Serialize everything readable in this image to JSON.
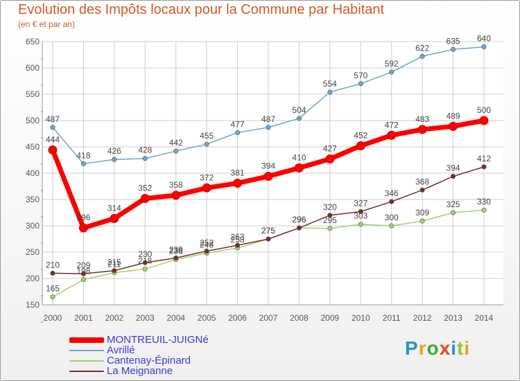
{
  "title": "Evolution des Impôts locaux pour la Commune par Habitant",
  "subtitle": "(en € et par an)",
  "brand": {
    "text": "Proxiti",
    "letter_colors": [
      "#2a8fd6",
      "#e8a11c",
      "#3cab3c",
      "#e3462c",
      "#2a8fd6",
      "#9ac132",
      "#e8a11c"
    ]
  },
  "colors": {
    "grid": "#cccccc",
    "axis_text": "#555555",
    "title": "#d05a2a",
    "legend_text": "#3a3acc"
  },
  "chart_data": {
    "type": "line",
    "x": [
      2000,
      2001,
      2002,
      2003,
      2004,
      2005,
      2006,
      2007,
      2008,
      2009,
      2010,
      2011,
      2012,
      2013,
      2014
    ],
    "ylim": [
      150,
      650
    ],
    "yticks": [
      150,
      200,
      250,
      300,
      350,
      400,
      450,
      500,
      550,
      600,
      650
    ],
    "grid": true,
    "legend_position": "bottom-left",
    "series": [
      {
        "name": "Avrillé",
        "color": "#6aa6d6",
        "values": [
          487,
          418,
          426,
          428,
          442,
          455,
          477,
          487,
          504,
          554,
          570,
          592,
          622,
          635,
          640
        ],
        "labels": [
          "487",
          "418",
          "426",
          "428",
          "442",
          "455",
          "477",
          "487",
          "504",
          "554",
          "570",
          "592",
          "622",
          "635",
          "640"
        ]
      },
      {
        "name": "Cantenay-Épinard",
        "color": "#9ed46a",
        "values": [
          165,
          198,
          211,
          218,
          236,
          248,
          258,
          275,
          296,
          295,
          303,
          300,
          309,
          325,
          330
        ],
        "labels": [
          "165",
          "198",
          "211",
          "218",
          "236",
          "248",
          "258",
          "275",
          "296",
          "295",
          "303",
          "300",
          "309",
          "325",
          "330"
        ]
      },
      {
        "name": "La Meignanne",
        "color": "#7a2a2a",
        "values": [
          210,
          209,
          215,
          230,
          239,
          252,
          263,
          275,
          296,
          320,
          327,
          346,
          368,
          394,
          412
        ],
        "labels": [
          "210",
          "209",
          "215",
          "230",
          "239",
          "252",
          "263",
          "275",
          "296",
          "320",
          "327",
          "346",
          "368",
          "394",
          "412"
        ]
      },
      {
        "name": "MONTREUIL-JUIGNé",
        "color": "#ff0000",
        "values": [
          444,
          296,
          314,
          352,
          358,
          372,
          381,
          394,
          410,
          427,
          452,
          472,
          483,
          489,
          500
        ],
        "labels": [
          "444",
          "296",
          "314",
          "352",
          "358",
          "372",
          "381",
          "394",
          "410",
          "427",
          "452",
          "472",
          "483",
          "489",
          "500"
        ]
      }
    ],
    "legend": [
      {
        "name": "MONTREUIL-JUIGNé",
        "color": "#ff0000",
        "thickness": 8
      },
      {
        "name": "Avrillé",
        "color": "#6aa6d6",
        "thickness": 2
      },
      {
        "name": "Cantenay-Épinard",
        "color": "#9ed46a",
        "thickness": 2
      },
      {
        "name": "La Meignanne",
        "color": "#7a2a2a",
        "thickness": 2
      }
    ]
  }
}
